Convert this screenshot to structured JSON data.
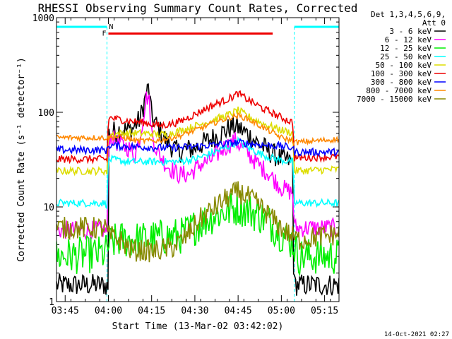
{
  "chart_data": {
    "type": "line",
    "title": "RHESSI Observing Summary Count Rates, Corrected",
    "xlabel": "Start Time (13-Mar-02 03:42:02)",
    "ylabel": "Corrected Count Rate (s⁻¹ detector⁻¹)",
    "x_unit": "minutes after 03:42:02",
    "xlim": [
      0,
      98
    ],
    "ylim": [
      1,
      1000
    ],
    "y_scale": "log",
    "x_ticks": [
      {
        "v": 3,
        "label": "03:45"
      },
      {
        "v": 18,
        "label": "04:00"
      },
      {
        "v": 33,
        "label": "04:15"
      },
      {
        "v": 48,
        "label": "04:30"
      },
      {
        "v": 63,
        "label": "04:45"
      },
      {
        "v": 78,
        "label": "05:00"
      },
      {
        "v": 93,
        "label": "05:15"
      }
    ],
    "y_ticks": [
      {
        "v": 1,
        "label": "1"
      },
      {
        "v": 10,
        "label": "10"
      },
      {
        "v": 100,
        "label": "100"
      },
      {
        "v": 1000,
        "label": "1000"
      }
    ],
    "legend_header": [
      "Det 1,3,4,5,6,9,",
      "Att 0"
    ],
    "legend_position": "right",
    "flags": [
      {
        "label": "F",
        "color": "#ee0000",
        "x": [
          18,
          75
        ],
        "level": 680
      },
      {
        "label": "N",
        "color": "#00ffff",
        "segments": [
          [
            0,
            17.5
          ],
          [
            82.5,
            98
          ]
        ],
        "level": 800
      }
    ],
    "night_lines": [
      17.5,
      82.5
    ],
    "footer": "14-Oct-2021 02:27",
    "series": [
      {
        "name": "3 - 6 keV",
        "color": "#000000",
        "noise": 0.12,
        "points": [
          [
            0,
            1.5
          ],
          [
            17,
            1.5
          ],
          [
            17.9,
            1.4
          ],
          [
            18.2,
            60
          ],
          [
            22,
            65
          ],
          [
            26,
            65
          ],
          [
            29,
            85
          ],
          [
            31,
            150
          ],
          [
            32,
            185
          ],
          [
            33,
            90
          ],
          [
            35,
            70
          ],
          [
            38,
            50
          ],
          [
            42,
            38
          ],
          [
            48,
            42
          ],
          [
            55,
            55
          ],
          [
            60,
            68
          ],
          [
            62,
            72
          ],
          [
            66,
            60
          ],
          [
            70,
            47
          ],
          [
            74,
            38
          ],
          [
            78,
            32
          ],
          [
            82,
            30
          ],
          [
            82.3,
            1.5
          ],
          [
            98,
            1.5
          ]
        ]
      },
      {
        "name": "6 - 12 keV",
        "color": "#ff00ff",
        "noise": 0.1,
        "points": [
          [
            0,
            5.7
          ],
          [
            17,
            5.7
          ],
          [
            17.5,
            5.4
          ],
          [
            18.2,
            58
          ],
          [
            21,
            48
          ],
          [
            25,
            42
          ],
          [
            27,
            35
          ],
          [
            29,
            55
          ],
          [
            31,
            140
          ],
          [
            32,
            150
          ],
          [
            33,
            60
          ],
          [
            35,
            38
          ],
          [
            38,
            28
          ],
          [
            42,
            22
          ],
          [
            46,
            22
          ],
          [
            50,
            28
          ],
          [
            54,
            32
          ],
          [
            58,
            42
          ],
          [
            62,
            50
          ],
          [
            66,
            38
          ],
          [
            70,
            28
          ],
          [
            74,
            22
          ],
          [
            78,
            16
          ],
          [
            82,
            14
          ],
          [
            82.5,
            6
          ],
          [
            98,
            6
          ]
        ]
      },
      {
        "name": "12 - 25 keV",
        "color": "#00ee00",
        "noise": 0.2,
        "points": [
          [
            0,
            3
          ],
          [
            17,
            3.2
          ],
          [
            18,
            4
          ],
          [
            22,
            4.5
          ],
          [
            30,
            4.5
          ],
          [
            37,
            4.8
          ],
          [
            44,
            5
          ],
          [
            48,
            6.2
          ],
          [
            54,
            8
          ],
          [
            60,
            9.2
          ],
          [
            63,
            10
          ],
          [
            66,
            9.3
          ],
          [
            70,
            8.3
          ],
          [
            74,
            6.8
          ],
          [
            78,
            5.2
          ],
          [
            82,
            4.2
          ],
          [
            84,
            3
          ],
          [
            98,
            3
          ]
        ]
      },
      {
        "name": "25 - 50 keV",
        "color": "#00ffff",
        "noise": 0.04,
        "points": [
          [
            0,
            11
          ],
          [
            17,
            11
          ],
          [
            17.5,
            10.5
          ],
          [
            18,
            32
          ],
          [
            25,
            30
          ],
          [
            35,
            30
          ],
          [
            42,
            30
          ],
          [
            48,
            32
          ],
          [
            55,
            38
          ],
          [
            60,
            44
          ],
          [
            63,
            50
          ],
          [
            66,
            43
          ],
          [
            72,
            35
          ],
          [
            78,
            31
          ],
          [
            82,
            30
          ],
          [
            82.5,
            11
          ],
          [
            98,
            11
          ]
        ]
      },
      {
        "name": "50 - 100 keV",
        "color": "#dddd00",
        "noise": 0.04,
        "points": [
          [
            0,
            24
          ],
          [
            17,
            24
          ],
          [
            17.5,
            23
          ],
          [
            18,
            58
          ],
          [
            22,
            60
          ],
          [
            30,
            60
          ],
          [
            38,
            58
          ],
          [
            46,
            68
          ],
          [
            54,
            82
          ],
          [
            60,
            95
          ],
          [
            63,
            105
          ],
          [
            66,
            92
          ],
          [
            72,
            75
          ],
          [
            78,
            65
          ],
          [
            82,
            60
          ],
          [
            82.5,
            24
          ],
          [
            98,
            25
          ]
        ]
      },
      {
        "name": "100 - 300 keV",
        "color": "#ee0000",
        "noise": 0.04,
        "points": [
          [
            0,
            32
          ],
          [
            17,
            32
          ],
          [
            17.5,
            31
          ],
          [
            18,
            88
          ],
          [
            24,
            82
          ],
          [
            30,
            78
          ],
          [
            36,
            72
          ],
          [
            42,
            78
          ],
          [
            48,
            95
          ],
          [
            54,
            118
          ],
          [
            60,
            140
          ],
          [
            63,
            158
          ],
          [
            66,
            138
          ],
          [
            72,
            108
          ],
          [
            78,
            88
          ],
          [
            82,
            78
          ],
          [
            82.5,
            33
          ],
          [
            98,
            34
          ]
        ]
      },
      {
        "name": "300 - 800 keV",
        "color": "#0000ff",
        "noise": 0.04,
        "points": [
          [
            0,
            40
          ],
          [
            17,
            40
          ],
          [
            17.5,
            39
          ],
          [
            18,
            45
          ],
          [
            22,
            44
          ],
          [
            30,
            43
          ],
          [
            38,
            42
          ],
          [
            46,
            43
          ],
          [
            54,
            45
          ],
          [
            60,
            47
          ],
          [
            63,
            48
          ],
          [
            66,
            47
          ],
          [
            72,
            45
          ],
          [
            78,
            44
          ],
          [
            82,
            42
          ],
          [
            82.5,
            38
          ],
          [
            98,
            38
          ]
        ]
      },
      {
        "name": "800 - 7000 keV",
        "color": "#ff8800",
        "noise": 0.03,
        "points": [
          [
            0,
            54
          ],
          [
            17,
            54
          ],
          [
            17.5,
            53
          ],
          [
            18,
            54
          ],
          [
            22,
            55
          ],
          [
            28,
            50
          ],
          [
            34,
            50
          ],
          [
            38,
            52
          ],
          [
            44,
            58
          ],
          [
            50,
            68
          ],
          [
            56,
            80
          ],
          [
            60,
            88
          ],
          [
            63,
            92
          ],
          [
            66,
            86
          ],
          [
            72,
            68
          ],
          [
            78,
            54
          ],
          [
            82,
            50
          ],
          [
            82.5,
            48
          ],
          [
            98,
            52
          ]
        ]
      },
      {
        "name": "7000 - 15000 keV",
        "color": "#888800",
        "noise": 0.12,
        "points": [
          [
            0,
            6
          ],
          [
            17,
            6
          ],
          [
            18,
            5
          ],
          [
            22,
            4.5
          ],
          [
            26,
            3.5
          ],
          [
            34,
            3.4
          ],
          [
            40,
            3.7
          ],
          [
            44,
            4.5
          ],
          [
            50,
            7.5
          ],
          [
            56,
            10.5
          ],
          [
            60,
            13
          ],
          [
            63,
            14.5
          ],
          [
            66,
            13
          ],
          [
            70,
            10.5
          ],
          [
            74,
            8
          ],
          [
            78,
            6
          ],
          [
            82,
            4.8
          ],
          [
            84,
            4.5
          ],
          [
            98,
            5.2
          ]
        ]
      }
    ]
  }
}
